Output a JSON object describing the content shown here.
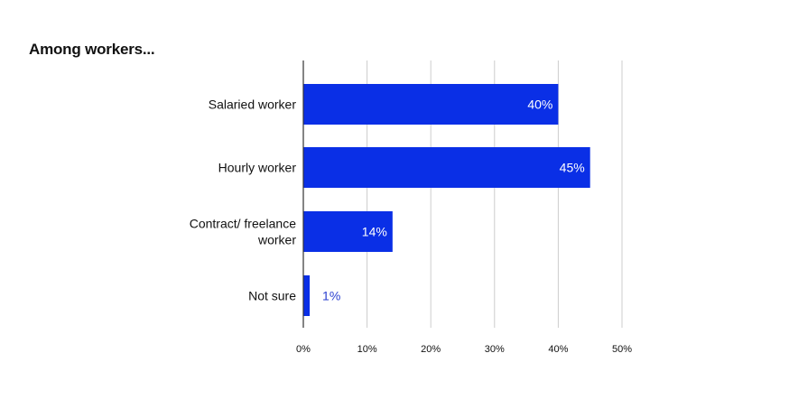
{
  "chart_data": {
    "type": "bar",
    "orientation": "horizontal",
    "title": "Among workers...",
    "categories": [
      [
        "Salaried worker"
      ],
      [
        "Hourly worker"
      ],
      [
        "Contract/ freelance",
        "worker"
      ],
      [
        "Not sure"
      ]
    ],
    "values": [
      40,
      45,
      14,
      1
    ],
    "value_labels": [
      "40%",
      "45%",
      "14%",
      "1%"
    ],
    "xlim": [
      0,
      50
    ],
    "xticks": [
      0,
      10,
      20,
      30,
      40,
      50
    ],
    "xtick_labels": [
      "0%",
      "10%",
      "20%",
      "30%",
      "40%",
      "50%"
    ],
    "grid": "vertical",
    "legend": "none",
    "colors": {
      "bar": "#0a2fe6",
      "label_inside": "#ffffff",
      "label_outside": "#2a3fd0",
      "grid": "#cccccc",
      "axis": "#333333",
      "text": "#111111"
    }
  }
}
